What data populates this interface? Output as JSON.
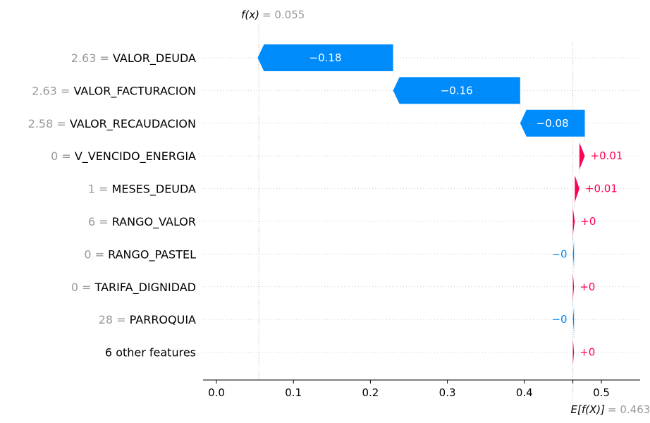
{
  "chart_data": {
    "type": "waterfall",
    "base_value": 0.463,
    "output_value": 0.055,
    "fx_label": "f(x)",
    "fx_value_text": "= 0.055",
    "ex_label": "E[f(X)]",
    "ex_value_text": "= 0.463",
    "xlim": [
      -0.02,
      0.55
    ],
    "xticks": [
      0.0,
      0.1,
      0.2,
      0.3,
      0.4,
      0.5
    ],
    "xtick_labels": [
      "0.0",
      "0.1",
      "0.2",
      "0.3",
      "0.4",
      "0.5"
    ],
    "grid": false,
    "features": [
      {
        "value": "2.63 =",
        "name": "VALOR_DEUDA",
        "shap": -0.176,
        "label": "−0.18"
      },
      {
        "value": "2.63 =",
        "name": "VALOR_FACTURACION",
        "shap": -0.165,
        "label": "−0.16"
      },
      {
        "value": "2.58 =",
        "name": "VALOR_RECAUDACION",
        "shap": -0.084,
        "label": "−0.08"
      },
      {
        "value": "0 =",
        "name": "V_VENCIDO_ENERGIA",
        "shap": 0.007,
        "label": "+0.01"
      },
      {
        "value": "1 =",
        "name": "MESES_DEUDA",
        "shap": 0.006,
        "label": "+0.01"
      },
      {
        "value": "6 =",
        "name": "RANGO_VALOR",
        "shap": 0.0025,
        "label": "+0"
      },
      {
        "value": "0 =",
        "name": "RANGO_PASTEL",
        "shap": -0.0015,
        "label": "−0"
      },
      {
        "value": "0 =",
        "name": "TARIFA_DIGNIDAD",
        "shap": 0.0015,
        "label": "+0"
      },
      {
        "value": "28 =",
        "name": "PARROQUIA",
        "shap": -0.0015,
        "label": "−0"
      },
      {
        "value": "",
        "name": "6 other features",
        "shap": 0.0015,
        "label": "+0"
      }
    ],
    "colors": {
      "positive": "#ff0051",
      "negative": "#008bfb",
      "grey": "#999999"
    }
  }
}
